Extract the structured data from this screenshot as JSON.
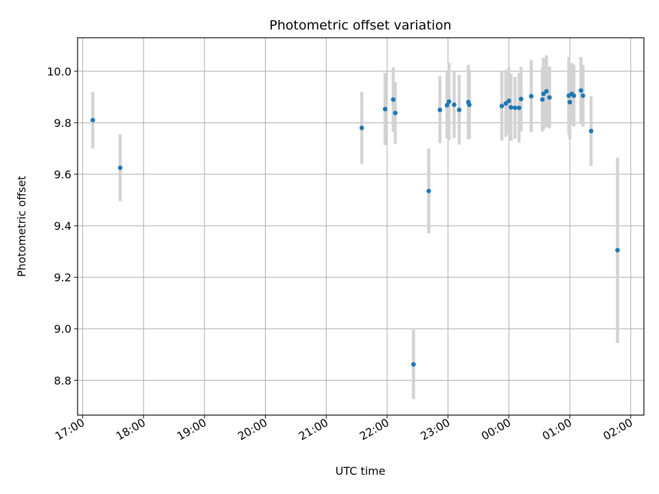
{
  "chart_data": {
    "type": "scatter",
    "title": "Photometric offset variation",
    "xlabel": "UTC time",
    "ylabel": "Photometric offset",
    "x_axis_type": "time",
    "xlim": [
      "16:55",
      "02:13"
    ],
    "ylim": [
      8.665,
      10.13
    ],
    "xticks": [
      "17:00",
      "18:00",
      "19:00",
      "20:00",
      "21:00",
      "22:00",
      "23:00",
      "00:00",
      "01:00",
      "02:00"
    ],
    "yticks": [
      "8.8",
      "9.0",
      "9.2",
      "9.4",
      "9.6",
      "9.8",
      "10.0"
    ],
    "grid": true,
    "point_color": "#1f77b4",
    "errorbar_color": "#d3d3d3",
    "series": [
      {
        "points": [
          {
            "x": "17:10",
            "y": 9.81,
            "err": 0.11
          },
          {
            "x": "17:37",
            "y": 9.625,
            "err": 0.13
          },
          {
            "x": "21:35",
            "y": 9.78,
            "err": 0.14
          },
          {
            "x": "21:58",
            "y": 9.853,
            "err": 0.14
          },
          {
            "x": "22:06",
            "y": 9.89,
            "err": 0.125
          },
          {
            "x": "22:08",
            "y": 9.838,
            "err": 0.12
          },
          {
            "x": "22:26",
            "y": 8.862,
            "err": 0.135
          },
          {
            "x": "22:41",
            "y": 9.535,
            "err": 0.165
          },
          {
            "x": "22:52",
            "y": 9.85,
            "err": 0.13
          },
          {
            "x": "22:59",
            "y": 9.868,
            "err": 0.13
          },
          {
            "x": "23:01",
            "y": 9.882,
            "err": 0.15
          },
          {
            "x": "23:06",
            "y": 9.87,
            "err": 0.13
          },
          {
            "x": "23:11",
            "y": 9.85,
            "err": 0.135
          },
          {
            "x": "23:20",
            "y": 9.88,
            "err": 0.145
          },
          {
            "x": "23:21",
            "y": 9.87,
            "err": 0.13
          },
          {
            "x": "23:53",
            "y": 9.865,
            "err": 0.135
          },
          {
            "x": "23:57",
            "y": 9.875,
            "err": 0.13
          },
          {
            "x": "00:00",
            "y": 9.885,
            "err": 0.13
          },
          {
            "x": "00:02",
            "y": 9.86,
            "err": 0.13
          },
          {
            "x": "00:06",
            "y": 9.858,
            "err": 0.12
          },
          {
            "x": "00:10",
            "y": 9.858,
            "err": 0.135
          },
          {
            "x": "00:12",
            "y": 9.892,
            "err": 0.125
          },
          {
            "x": "00:22",
            "y": 9.903,
            "err": 0.14
          },
          {
            "x": "00:33",
            "y": 9.89,
            "err": 0.125
          },
          {
            "x": "00:34",
            "y": 9.912,
            "err": 0.14
          },
          {
            "x": "00:37",
            "y": 9.922,
            "err": 0.14
          },
          {
            "x": "00:40",
            "y": 9.898,
            "err": 0.12
          },
          {
            "x": "00:59",
            "y": 9.905,
            "err": 0.15
          },
          {
            "x": "01:00",
            "y": 9.88,
            "err": 0.145
          },
          {
            "x": "01:02",
            "y": 9.912,
            "err": 0.12
          },
          {
            "x": "01:04",
            "y": 9.905,
            "err": 0.12
          },
          {
            "x": "01:11",
            "y": 9.925,
            "err": 0.13
          },
          {
            "x": "01:13",
            "y": 9.905,
            "err": 0.12
          },
          {
            "x": "01:21",
            "y": 9.768,
            "err": 0.135
          },
          {
            "x": "01:47",
            "y": 9.305,
            "err": 0.36
          }
        ]
      }
    ]
  }
}
